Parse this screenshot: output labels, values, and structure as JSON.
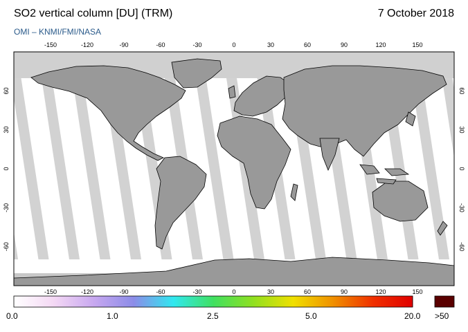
{
  "header": {
    "title": "SO2 vertical column [DU] (TRM)",
    "date": "7 October 2018",
    "credit": "OMI  –  KNMI/FMI/NASA"
  },
  "map": {
    "lon_ticks": [
      "-150",
      "-120",
      "-90",
      "-60",
      "-30",
      "0",
      "30",
      "60",
      "90",
      "120",
      "150"
    ],
    "lat_ticks": [
      "60",
      "30",
      "0",
      "-30",
      "-60"
    ],
    "colors": {
      "land": "#999999",
      "swath_gap": "#d0d0d0",
      "ocean": "#ffffff",
      "coast": "#000000"
    }
  },
  "colorbar": {
    "labels": [
      "0.0",
      "1.0",
      "2.5",
      "5.0",
      "20.0"
    ],
    "overflow_label": ">50",
    "overflow_color": "#5a0000",
    "stops": [
      "#ffffff",
      "#f4d8f4",
      "#c8a8f0",
      "#8c8ce8",
      "#30e8f0",
      "#40e060",
      "#90e020",
      "#f0e000",
      "#f09000",
      "#f03000",
      "#e00000"
    ]
  }
}
